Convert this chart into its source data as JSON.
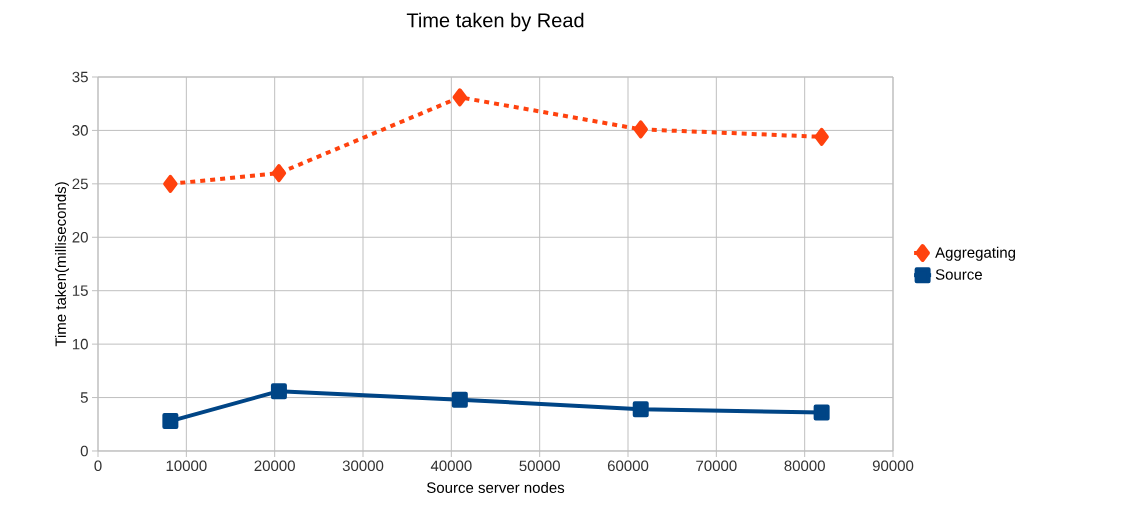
{
  "chart_data": {
    "type": "line",
    "title": "Time taken by Read",
    "xlabel": "Source server nodes",
    "ylabel": "Time taken(milliseconds)",
    "x": [
      8192,
      20480,
      40960,
      61440,
      81920
    ],
    "series": [
      {
        "name": "Aggregating",
        "color": "#ff420e",
        "values": [
          25.0,
          26.0,
          33.1,
          30.1,
          29.4
        ],
        "marker": "diamond",
        "line_style": "dotted"
      },
      {
        "name": "Source",
        "color": "#004586",
        "values": [
          2.8,
          5.6,
          4.8,
          3.9,
          3.6
        ],
        "marker": "square",
        "line_style": "solid"
      }
    ],
    "xlim": [
      0,
      90000
    ],
    "xticks": [
      0,
      10000,
      20000,
      30000,
      40000,
      50000,
      60000,
      70000,
      80000,
      90000
    ],
    "ylim": [
      0,
      35
    ],
    "yticks": [
      0,
      5,
      10,
      15,
      20,
      25,
      30,
      35
    ],
    "grid": true,
    "legend": "right"
  }
}
